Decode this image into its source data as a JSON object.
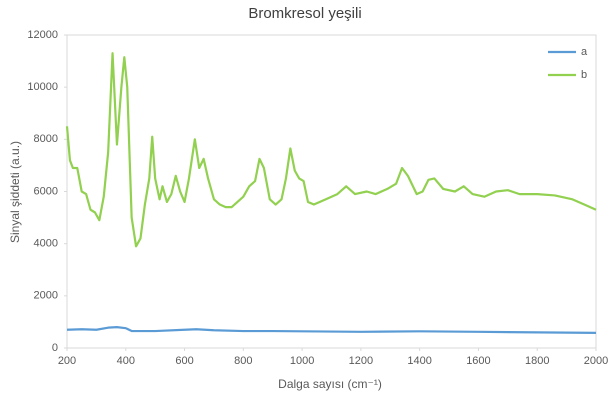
{
  "chart_data": {
    "type": "line",
    "title": "Bromkresol yeşili",
    "x_label": "Dalga sayısı (cm⁻¹)",
    "y_label": "Sinyal şiddeti (a.u.)",
    "xlim": [
      200,
      2000
    ],
    "xticks": [
      200,
      400,
      600,
      800,
      1000,
      1200,
      1400,
      1600,
      1800,
      2000
    ],
    "ylim": [
      0,
      12000
    ],
    "yticks": [
      0,
      2000,
      4000,
      6000,
      8000,
      10000,
      12000
    ],
    "grid": false,
    "legend": "top-right",
    "series": [
      {
        "name": "a",
        "color": "#5b9bd5",
        "x": [
          200,
          250,
          300,
          340,
          370,
          400,
          420,
          500,
          600,
          640,
          700,
          800,
          900,
          1000,
          1200,
          1400,
          1600,
          1800,
          2000
        ],
        "values": [
          700,
          720,
          700,
          780,
          800,
          760,
          650,
          650,
          700,
          720,
          680,
          650,
          650,
          640,
          620,
          640,
          620,
          600,
          580
        ]
      },
      {
        "name": "b",
        "color": "#92d050",
        "x": [
          200,
          210,
          220,
          235,
          250,
          265,
          280,
          295,
          310,
          325,
          340,
          355,
          370,
          385,
          395,
          405,
          420,
          435,
          450,
          465,
          480,
          490,
          500,
          515,
          525,
          540,
          555,
          570,
          585,
          600,
          615,
          635,
          650,
          665,
          680,
          700,
          720,
          740,
          760,
          780,
          800,
          820,
          840,
          855,
          870,
          890,
          910,
          930,
          945,
          960,
          975,
          990,
          1005,
          1020,
          1040,
          1080,
          1120,
          1150,
          1180,
          1220,
          1250,
          1290,
          1320,
          1340,
          1360,
          1390,
          1410,
          1430,
          1450,
          1480,
          1520,
          1550,
          1580,
          1620,
          1660,
          1700,
          1740,
          1800,
          1860,
          1920,
          1960,
          2000
        ],
        "values": [
          8500,
          7200,
          6900,
          6900,
          6000,
          5900,
          5300,
          5200,
          4900,
          5800,
          7500,
          11300,
          7800,
          10000,
          11150,
          10000,
          5000,
          3900,
          4200,
          5500,
          6500,
          8100,
          6500,
          5700,
          6200,
          5600,
          5900,
          6600,
          6000,
          5600,
          6500,
          8000,
          6900,
          7250,
          6500,
          5700,
          5500,
          5400,
          5400,
          5600,
          5800,
          6200,
          6400,
          7250,
          6900,
          5700,
          5500,
          5700,
          6500,
          7650,
          6800,
          6500,
          6400,
          5600,
          5500,
          5700,
          5900,
          6200,
          5900,
          6000,
          5900,
          6100,
          6300,
          6900,
          6600,
          5900,
          6000,
          6450,
          6500,
          6100,
          6000,
          6200,
          5900,
          5800,
          6000,
          6050,
          5900,
          5900,
          5850,
          5700,
          5500,
          5300
        ]
      }
    ]
  }
}
